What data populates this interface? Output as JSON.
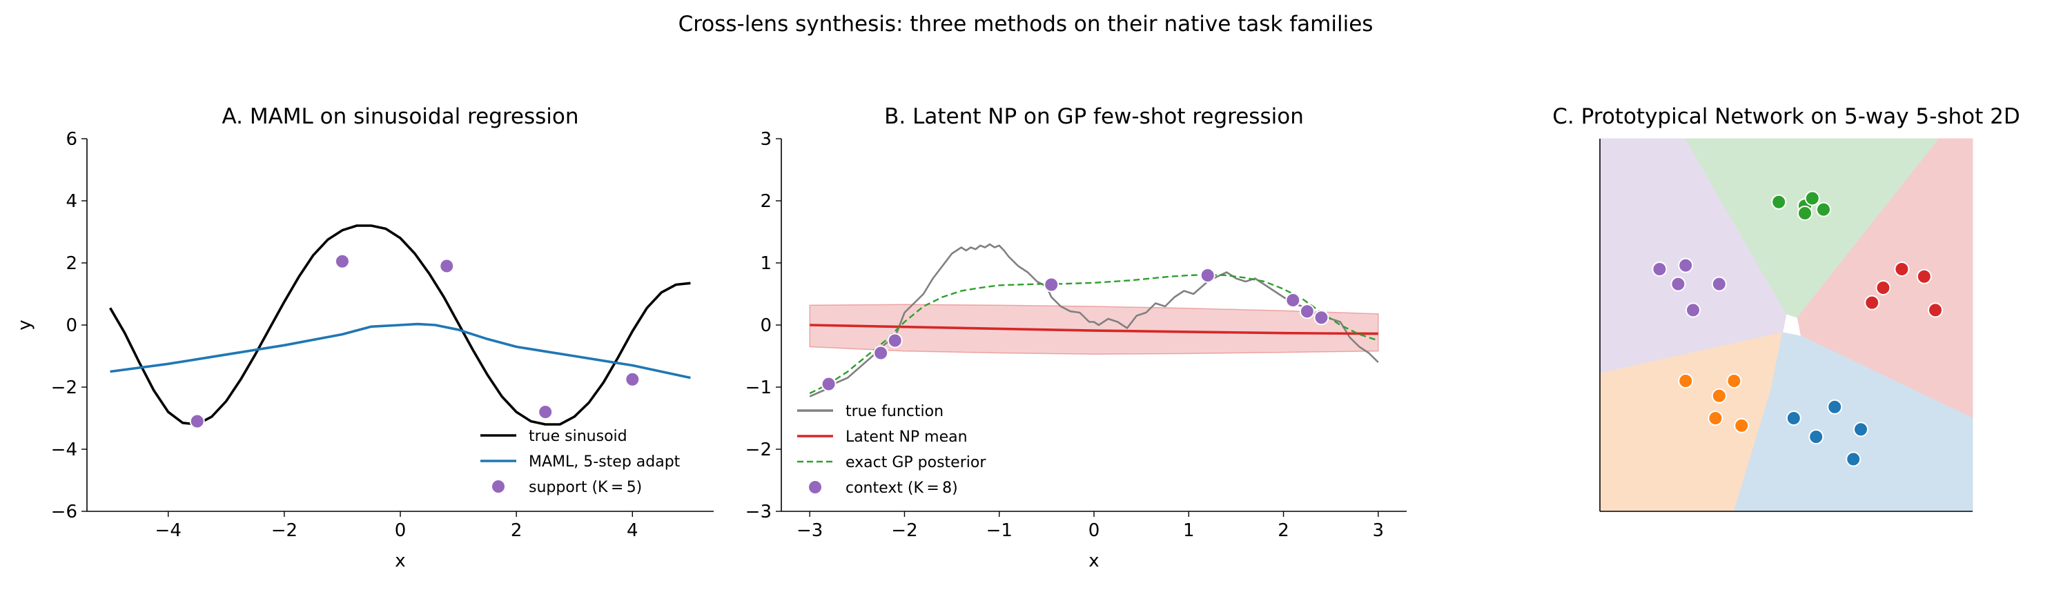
{
  "suptitle": "Cross-lens synthesis: three methods on their native task families",
  "chart_data": [
    {
      "id": "A",
      "type": "line",
      "title": "A. MAML on sinusoidal regression",
      "xlabel": "x",
      "ylabel": "y",
      "xlim": [
        -5.4,
        5.4
      ],
      "ylim": [
        -6,
        6
      ],
      "xticks": [
        -4,
        -2,
        0,
        2,
        4
      ],
      "xtick_labels": [
        "−4",
        "−2",
        "0",
        "2",
        "4"
      ],
      "yticks": [
        -6,
        -4,
        -2,
        0,
        2,
        4,
        6
      ],
      "ytick_labels": [
        "−6",
        "−4",
        "−2",
        "0",
        "2",
        "4",
        "6"
      ],
      "grid": false,
      "legend_position": "lower-right",
      "colors": {
        "true": "#000000",
        "maml": "#1f77b4",
        "support": "#9467bd"
      },
      "series": [
        {
          "name": "true sinusoid",
          "kind": "line",
          "color": "#000000",
          "x": [
            -5.0,
            -4.75,
            -4.5,
            -4.25,
            -4.0,
            -3.75,
            -3.5,
            -3.25,
            -3.0,
            -2.75,
            -2.5,
            -2.25,
            -2.0,
            -1.75,
            -1.5,
            -1.25,
            -1.0,
            -0.75,
            -0.5,
            -0.25,
            0.0,
            0.25,
            0.5,
            0.75,
            1.0,
            1.25,
            1.5,
            1.75,
            2.0,
            2.25,
            2.5,
            2.75,
            3.0,
            3.25,
            3.5,
            3.75,
            4.0,
            4.25,
            4.5,
            4.75,
            5.0
          ],
          "y": [
            0.55,
            -0.25,
            -1.2,
            -2.1,
            -2.8,
            -3.15,
            -3.2,
            -2.95,
            -2.45,
            -1.75,
            -0.95,
            -0.1,
            0.75,
            1.55,
            2.25,
            2.75,
            3.05,
            3.2,
            3.2,
            3.1,
            2.8,
            2.3,
            1.65,
            0.9,
            0.05,
            -0.8,
            -1.6,
            -2.3,
            -2.8,
            -3.1,
            -3.2,
            -3.2,
            -2.95,
            -2.5,
            -1.85,
            -1.05,
            -0.2,
            0.55,
            1.05,
            1.3,
            1.35
          ]
        },
        {
          "name": "MAML, 5-step adapt",
          "kind": "line",
          "color": "#1f77b4",
          "x": [
            -5.0,
            -4.0,
            -3.0,
            -2.0,
            -1.0,
            -0.5,
            0.0,
            0.3,
            0.6,
            1.0,
            1.5,
            2.0,
            2.5,
            3.0,
            3.5,
            4.0,
            4.5,
            5.0
          ],
          "y": [
            -1.5,
            -1.25,
            -0.95,
            -0.65,
            -0.3,
            -0.05,
            0.0,
            0.03,
            0.0,
            -0.15,
            -0.45,
            -0.7,
            -0.85,
            -1.0,
            -1.15,
            -1.3,
            -1.5,
            -1.7
          ]
        },
        {
          "name": "support (K = 5)",
          "kind": "scatter",
          "color": "#9467bd",
          "x": [
            -3.5,
            -1.0,
            0.8,
            2.5,
            4.0
          ],
          "y": [
            -3.1,
            2.05,
            1.9,
            -2.8,
            -1.75
          ]
        }
      ],
      "legend": [
        {
          "label": "true sinusoid",
          "kind": "line",
          "color": "#000000"
        },
        {
          "label": "MAML, 5-step adapt",
          "kind": "line",
          "color": "#1f77b4"
        },
        {
          "label": "support (K = 5)",
          "kind": "marker",
          "color": "#9467bd"
        }
      ]
    },
    {
      "id": "B",
      "type": "line",
      "title": "B. Latent NP on GP few-shot regression",
      "xlabel": "x",
      "ylabel": "",
      "xlim": [
        -3.3,
        3.3
      ],
      "ylim": [
        -3,
        3
      ],
      "xticks": [
        -3,
        -2,
        -1,
        0,
        1,
        2,
        3
      ],
      "xtick_labels": [
        "−3",
        "−2",
        "−1",
        "0",
        "1",
        "2",
        "3"
      ],
      "yticks": [
        -3,
        -2,
        -1,
        0,
        1,
        2,
        3
      ],
      "ytick_labels": [
        "−3",
        "−2",
        "−1",
        "0",
        "1",
        "2",
        "3"
      ],
      "grid": false,
      "legend_position": "lower-left",
      "series": [
        {
          "name": "true function",
          "kind": "line",
          "color": "#808080",
          "x": [
            -3.0,
            -2.85,
            -2.75,
            -2.6,
            -2.45,
            -2.3,
            -2.2,
            -2.1,
            -2.0,
            -1.9,
            -1.8,
            -1.7,
            -1.6,
            -1.5,
            -1.45,
            -1.4,
            -1.35,
            -1.3,
            -1.25,
            -1.2,
            -1.15,
            -1.1,
            -1.05,
            -1.0,
            -0.95,
            -0.9,
            -0.8,
            -0.7,
            -0.6,
            -0.5,
            -0.45,
            -0.35,
            -0.25,
            -0.15,
            -0.05,
            0.0,
            0.05,
            0.15,
            0.25,
            0.35,
            0.45,
            0.55,
            0.65,
            0.75,
            0.85,
            0.95,
            1.05,
            1.2,
            1.3,
            1.4,
            1.5,
            1.6,
            1.7,
            1.8,
            1.9,
            2.0,
            2.1,
            2.2,
            2.3,
            2.4,
            2.5,
            2.6,
            2.7,
            2.8,
            2.9,
            3.0
          ],
          "y": [
            -1.15,
            -1.05,
            -0.95,
            -0.85,
            -0.65,
            -0.45,
            -0.3,
            -0.2,
            0.2,
            0.35,
            0.5,
            0.75,
            0.95,
            1.15,
            1.2,
            1.25,
            1.2,
            1.25,
            1.22,
            1.28,
            1.25,
            1.3,
            1.25,
            1.28,
            1.2,
            1.1,
            0.95,
            0.85,
            0.7,
            0.62,
            0.45,
            0.3,
            0.22,
            0.2,
            0.05,
            0.05,
            0.0,
            0.1,
            0.05,
            -0.05,
            0.15,
            0.2,
            0.35,
            0.3,
            0.45,
            0.55,
            0.5,
            0.7,
            0.78,
            0.85,
            0.75,
            0.7,
            0.75,
            0.65,
            0.55,
            0.45,
            0.35,
            0.3,
            0.2,
            0.15,
            0.1,
            0.05,
            -0.2,
            -0.35,
            -0.45,
            -0.6
          ]
        },
        {
          "name": "Latent NP mean",
          "kind": "line",
          "color": "#d62728",
          "x": [
            -3.0,
            -2.0,
            -1.0,
            0.0,
            1.0,
            2.0,
            3.0
          ],
          "y": [
            0.0,
            -0.03,
            -0.06,
            -0.09,
            -0.11,
            -0.13,
            -0.14
          ]
        },
        {
          "name": "Latent NP band",
          "kind": "band",
          "color": "#d62728",
          "x": [
            -3.0,
            -2.0,
            -1.0,
            0.0,
            1.0,
            2.0,
            3.0
          ],
          "lower": [
            -0.35,
            -0.42,
            -0.45,
            -0.47,
            -0.46,
            -0.44,
            -0.42
          ],
          "upper": [
            0.32,
            0.33,
            0.32,
            0.3,
            0.27,
            0.23,
            0.18
          ]
        },
        {
          "name": "exact GP posterior",
          "kind": "dashed",
          "color": "#2ca02c",
          "x": [
            -3.0,
            -2.8,
            -2.6,
            -2.4,
            -2.2,
            -2.0,
            -1.8,
            -1.6,
            -1.4,
            -1.2,
            -1.0,
            -0.8,
            -0.6,
            -0.4,
            -0.2,
            0.0,
            0.2,
            0.4,
            0.6,
            0.8,
            1.0,
            1.2,
            1.4,
            1.6,
            1.8,
            2.0,
            2.2,
            2.4,
            2.6,
            2.8,
            3.0
          ],
          "y": [
            -1.1,
            -0.95,
            -0.75,
            -0.5,
            -0.25,
            0.05,
            0.3,
            0.45,
            0.55,
            0.6,
            0.64,
            0.65,
            0.66,
            0.66,
            0.67,
            0.68,
            0.7,
            0.72,
            0.75,
            0.78,
            0.8,
            0.81,
            0.8,
            0.76,
            0.7,
            0.58,
            0.42,
            0.2,
            0.0,
            -0.15,
            -0.25
          ]
        },
        {
          "name": "context (K = 8)",
          "kind": "scatter",
          "color": "#9467bd",
          "x": [
            -2.8,
            -2.25,
            -2.1,
            -0.45,
            1.2,
            2.1,
            2.25,
            2.4
          ],
          "y": [
            -0.95,
            -0.45,
            -0.25,
            0.65,
            0.8,
            0.4,
            0.22,
            0.12
          ]
        }
      ],
      "legend": [
        {
          "label": "true function",
          "kind": "line",
          "color": "#808080"
        },
        {
          "label": "Latent NP mean",
          "kind": "line",
          "color": "#d62728"
        },
        {
          "label": "exact GP posterior",
          "kind": "dashed",
          "color": "#2ca02c"
        },
        {
          "label": "context (K = 8)",
          "kind": "marker",
          "color": "#9467bd"
        }
      ]
    },
    {
      "id": "C",
      "type": "scatter",
      "title": "C. Prototypical Network on 5-way 5-shot 2D",
      "xlim": [
        0,
        1
      ],
      "ylim": [
        0,
        1
      ],
      "axes_ticks": false,
      "regions": [
        {
          "class": "purple",
          "fill": "#e5dcee",
          "polygon": [
            [
              0,
              1
            ],
            [
              0.23,
              1
            ],
            [
              0.5,
              0.53
            ],
            [
              0.49,
              0.48
            ],
            [
              0,
              0.37
            ]
          ]
        },
        {
          "class": "green",
          "fill": "#d0e8d0",
          "polygon": [
            [
              0.23,
              1
            ],
            [
              0.91,
              1
            ],
            [
              0.53,
              0.52
            ],
            [
              0.5,
              0.53
            ]
          ]
        },
        {
          "class": "red",
          "fill": "#f4cccc",
          "polygon": [
            [
              0.91,
              1
            ],
            [
              1,
              1
            ],
            [
              1,
              0.25
            ],
            [
              0.54,
              0.47
            ],
            [
              0.53,
              0.52
            ]
          ]
        },
        {
          "class": "orange",
          "fill": "#fcdec4",
          "polygon": [
            [
              0,
              0.37
            ],
            [
              0.49,
              0.48
            ],
            [
              0.46,
              0.33
            ],
            [
              0.36,
              0
            ],
            [
              0,
              0
            ]
          ]
        },
        {
          "class": "blue",
          "fill": "#cfe1ee",
          "polygon": [
            [
              0.54,
              0.47
            ],
            [
              1,
              0.25
            ],
            [
              1,
              0
            ],
            [
              0.36,
              0
            ],
            [
              0.46,
              0.33
            ],
            [
              0.49,
              0.48
            ]
          ]
        }
      ],
      "series": [
        {
          "name": "",
          "class": "green",
          "color": "#2ca02c",
          "x": [
            0.48,
            0.55,
            0.57,
            0.6,
            0.55
          ],
          "y": [
            0.83,
            0.82,
            0.84,
            0.81,
            0.8
          ]
        },
        {
          "name": "",
          "class": "purple",
          "color": "#9467bd",
          "x": [
            0.16,
            0.23,
            0.21,
            0.32,
            0.25
          ],
          "y": [
            0.65,
            0.66,
            0.61,
            0.61,
            0.54
          ]
        },
        {
          "name": "",
          "class": "red",
          "color": "#d62728",
          "x": [
            0.76,
            0.81,
            0.87,
            0.9,
            0.73
          ],
          "y": [
            0.6,
            0.65,
            0.63,
            0.54,
            0.56
          ]
        },
        {
          "name": "",
          "class": "orange",
          "color": "#ff7f0e",
          "x": [
            0.23,
            0.36,
            0.32,
            0.31,
            0.38
          ],
          "y": [
            0.35,
            0.35,
            0.31,
            0.25,
            0.23
          ]
        },
        {
          "name": "",
          "class": "blue",
          "color": "#1f77b4",
          "x": [
            0.52,
            0.63,
            0.58,
            0.7,
            0.68
          ],
          "y": [
            0.25,
            0.28,
            0.2,
            0.22,
            0.14
          ]
        }
      ]
    }
  ]
}
